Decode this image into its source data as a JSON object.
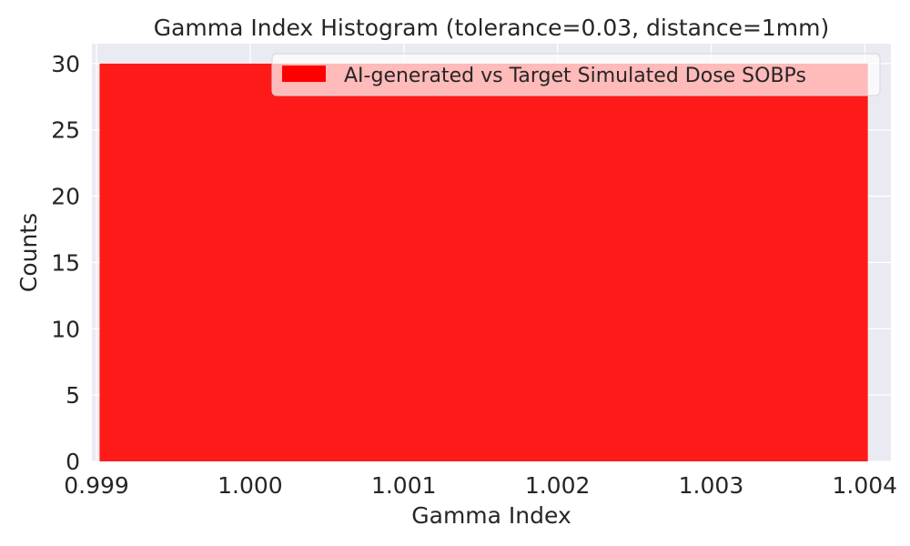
{
  "chart_data": {
    "type": "bar",
    "title": "Gamma Index Histogram (tolerance=0.03, distance=1mm)",
    "xlabel": "Gamma Index",
    "ylabel": "Counts",
    "xlim": [
      0.99897,
      1.00417
    ],
    "ylim": [
      0,
      31.5
    ],
    "xticks": [
      0.999,
      1.0,
      1.001,
      1.002,
      1.003,
      1.004
    ],
    "xtick_labels": [
      "0.999",
      "1.000",
      "1.001",
      "1.002",
      "1.003",
      "1.004"
    ],
    "yticks": [
      0,
      5,
      10,
      15,
      20,
      25,
      30
    ],
    "ytick_labels": [
      "0",
      "5",
      "10",
      "15",
      "20",
      "25",
      "30"
    ],
    "bars": [
      {
        "x0": 0.99902,
        "x1": 1.00402,
        "count": 30
      }
    ],
    "series": [
      {
        "name": "AI-generated vs Target Simulated Dose SOBPs",
        "color": "#ff0000"
      }
    ],
    "grid": true,
    "legend_position": "upper-right",
    "colors": {
      "background": "#eaeaf2",
      "grid": "#ffffff",
      "bar": "#ff1a1a"
    }
  }
}
